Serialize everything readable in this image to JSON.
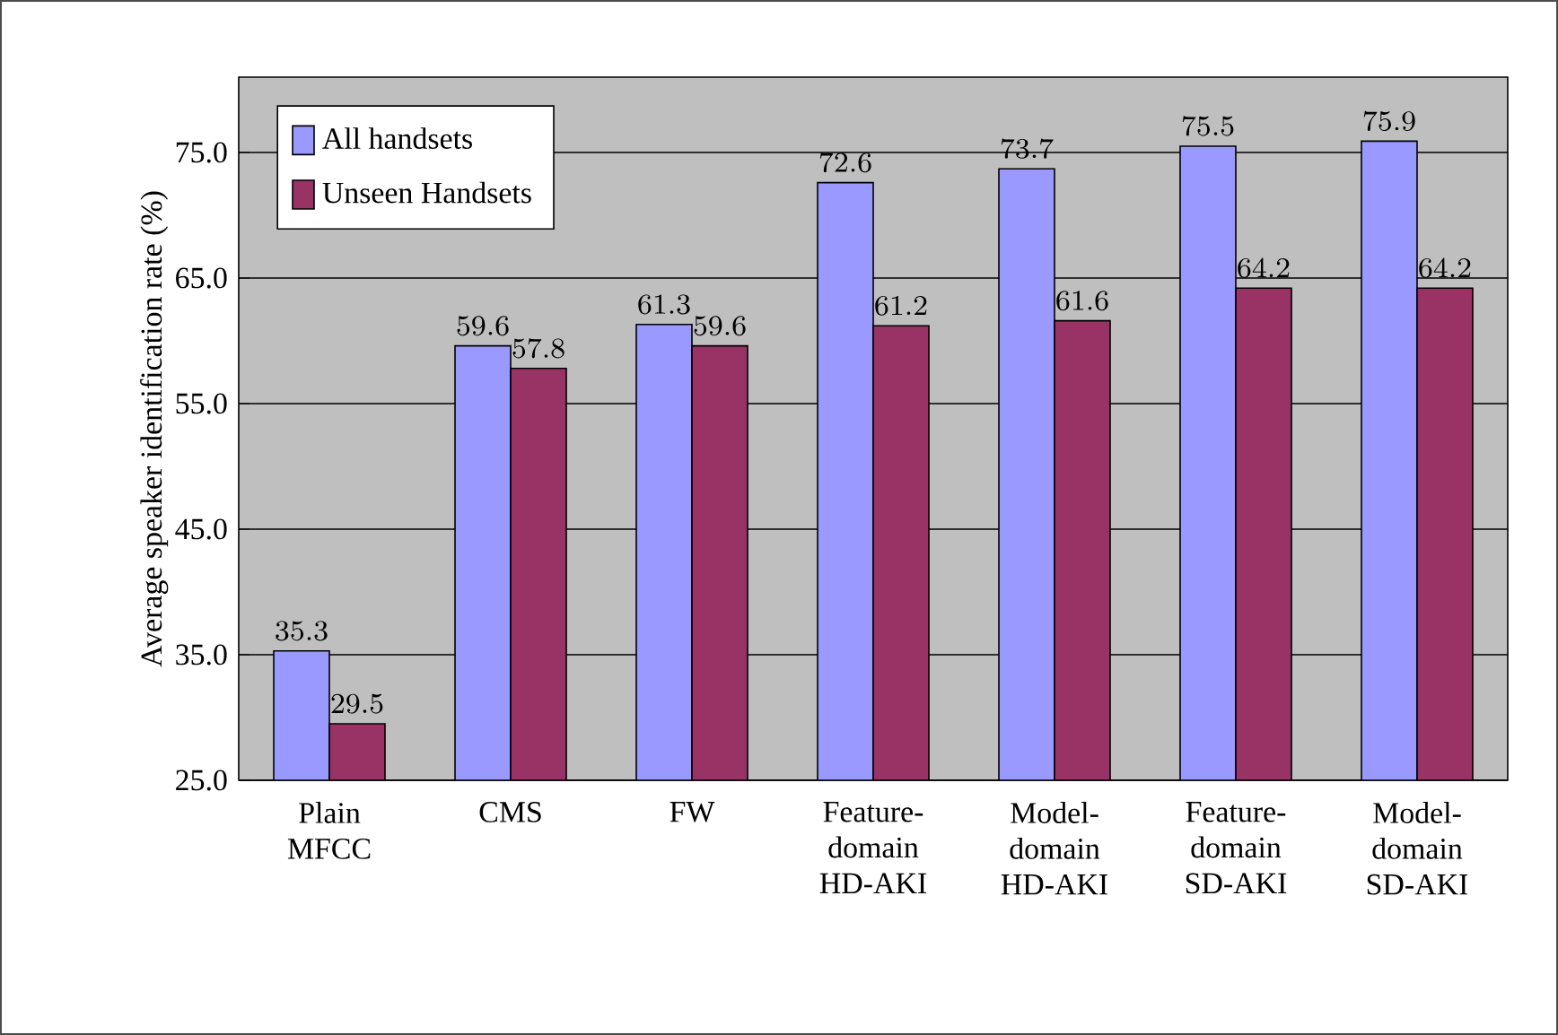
{
  "chart_data": {
    "type": "bar",
    "ylabel": "Average speaker identification rate (%)",
    "categories": [
      "Plain MFCC",
      "CMS",
      "FW",
      "Feature-domain HD-AKI",
      "Model-domain HD-AKI",
      "Feature-domain SD-AKI",
      "Model-domain SD-AKI"
    ],
    "series": [
      {
        "name": "All handsets",
        "color": "#9999ff",
        "values": [
          35.3,
          59.6,
          61.3,
          72.6,
          73.7,
          75.5,
          75.9
        ]
      },
      {
        "name": "Unseen Handsets",
        "color": "#993366",
        "values": [
          29.5,
          57.8,
          59.6,
          61.2,
          61.6,
          64.2,
          64.2
        ]
      }
    ],
    "ylim": [
      25,
      81
    ],
    "yticks": [
      {
        "value": 25,
        "label": "25.0"
      },
      {
        "value": 35,
        "label": "35.0"
      },
      {
        "value": 45,
        "label": "45.0"
      },
      {
        "value": 55,
        "label": "55.0"
      },
      {
        "value": 65,
        "label": "65.0"
      },
      {
        "value": 75,
        "label": "75.0"
      }
    ],
    "grid": "y",
    "legend": "top left",
    "data_labels": true
  }
}
